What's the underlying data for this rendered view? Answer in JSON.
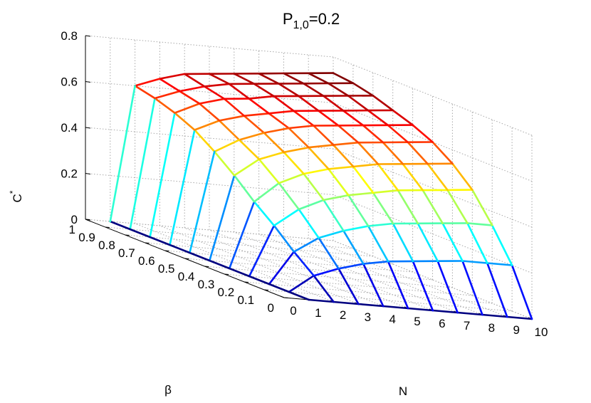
{
  "chart_data": {
    "type": "surface",
    "title": {
      "base": "P",
      "subscript": "1,0",
      "rest": "=0.2"
    },
    "xlabel": "N",
    "ylabel": "β",
    "zlabel": {
      "base": "C",
      "sup": "*"
    },
    "x_ticks": [
      "0",
      "1",
      "2",
      "3",
      "4",
      "5",
      "6",
      "7",
      "8",
      "9",
      "10"
    ],
    "y_ticks": [
      "0",
      "0.1",
      "0.2",
      "0.3",
      "0.4",
      "0.5",
      "0.6",
      "0.7",
      "0.8",
      "0.9",
      "1"
    ],
    "z_ticks": [
      "0",
      "0.2",
      "0.4",
      "0.6",
      "0.8"
    ],
    "xlim": [
      0,
      10
    ],
    "ylim": [
      0,
      1
    ],
    "zlim": [
      0,
      0.8
    ],
    "grid": true,
    "colormap": "jet",
    "N": [
      1,
      2,
      3,
      4,
      5,
      6,
      7,
      8,
      9,
      10
    ],
    "beta": [
      0,
      0.1,
      0.2,
      0.3,
      0.4,
      0.5,
      0.6,
      0.7,
      0.8,
      0.9,
      1
    ],
    "C": [
      [
        0.0,
        0.0,
        0.0,
        0.0,
        0.0,
        0.0,
        0.0,
        0.0,
        0.0,
        0.0
      ],
      [
        0.0,
        0.08,
        0.12,
        0.15,
        0.17,
        0.18,
        0.19,
        0.2,
        0.2,
        0.2
      ],
      [
        0.0,
        0.15,
        0.22,
        0.26,
        0.29,
        0.31,
        0.32,
        0.33,
        0.34,
        0.34
      ],
      [
        0.0,
        0.23,
        0.31,
        0.36,
        0.39,
        0.41,
        0.43,
        0.44,
        0.45,
        0.46
      ],
      [
        0.0,
        0.3,
        0.39,
        0.44,
        0.47,
        0.49,
        0.51,
        0.52,
        0.53,
        0.54
      ],
      [
        0.0,
        0.38,
        0.46,
        0.5,
        0.53,
        0.55,
        0.57,
        0.58,
        0.59,
        0.6
      ],
      [
        0.0,
        0.45,
        0.51,
        0.55,
        0.58,
        0.6,
        0.61,
        0.62,
        0.63,
        0.64
      ],
      [
        0.0,
        0.51,
        0.56,
        0.59,
        0.61,
        0.63,
        0.64,
        0.65,
        0.66,
        0.67
      ],
      [
        0.0,
        0.55,
        0.6,
        0.63,
        0.64,
        0.66,
        0.67,
        0.68,
        0.69,
        0.7
      ],
      [
        0.0,
        0.58,
        0.62,
        0.65,
        0.67,
        0.68,
        0.69,
        0.7,
        0.71,
        0.72
      ],
      [
        0.0,
        0.6,
        0.64,
        0.67,
        0.68,
        0.69,
        0.7,
        0.71,
        0.72,
        0.73
      ]
    ]
  }
}
